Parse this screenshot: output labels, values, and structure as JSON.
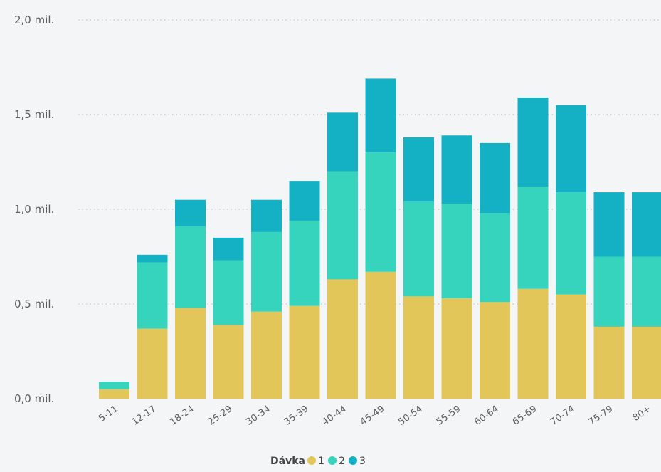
{
  "chart_data": {
    "type": "bar",
    "stacked": true,
    "categories": [
      "5-11",
      "12-17",
      "18-24",
      "25-29",
      "30-34",
      "35-39",
      "40-44",
      "45-49",
      "50-54",
      "55-59",
      "60-64",
      "65-69",
      "70-74",
      "75-79",
      "80+"
    ],
    "series": [
      {
        "name": "1",
        "color": "#e3c65a",
        "values": [
          0.05,
          0.37,
          0.48,
          0.39,
          0.46,
          0.49,
          0.63,
          0.67,
          0.54,
          0.53,
          0.51,
          0.58,
          0.55,
          0.38,
          0.38
        ]
      },
      {
        "name": "2",
        "color": "#36d4bd",
        "values": [
          0.04,
          0.35,
          0.43,
          0.34,
          0.42,
          0.45,
          0.57,
          0.63,
          0.5,
          0.5,
          0.47,
          0.54,
          0.54,
          0.37,
          0.37
        ]
      },
      {
        "name": "3",
        "color": "#14b1c5",
        "values": [
          0.0,
          0.04,
          0.14,
          0.12,
          0.17,
          0.21,
          0.31,
          0.39,
          0.34,
          0.36,
          0.37,
          0.47,
          0.46,
          0.34,
          0.34
        ]
      }
    ],
    "y_ticks": [
      "0,0 mil.",
      "0,5 mil.",
      "1,0 mil.",
      "1,5 mil.",
      "2,0 mil."
    ],
    "ylim": [
      0,
      2.0
    ],
    "grid": true,
    "legend_title": "Dávka",
    "legend_position": "bottom-center"
  }
}
